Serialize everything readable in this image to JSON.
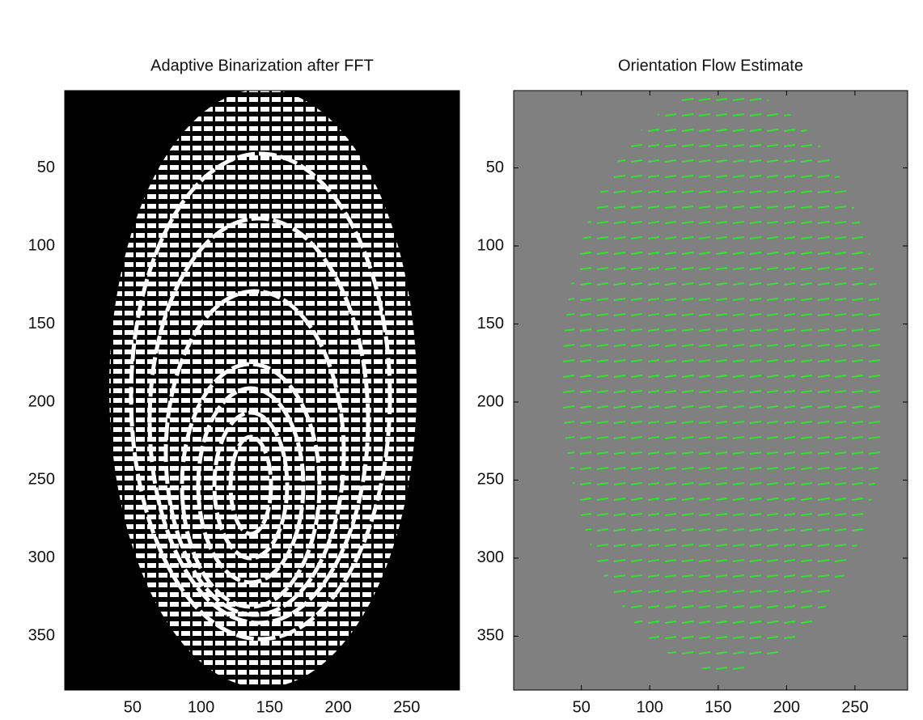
{
  "chart_data": [
    {
      "type": "image",
      "title": "Adaptive Binarization after FFT",
      "xlim": [
        0.5,
        288.5
      ],
      "ylim": [
        0.5,
        384.5
      ],
      "y_reversed": true,
      "xticks": [
        50,
        100,
        150,
        200,
        250
      ],
      "yticks": [
        50,
        100,
        150,
        200,
        250,
        300,
        350
      ],
      "background": "#000000"
    },
    {
      "type": "image",
      "title": "Orientation Flow Estimate",
      "xlim": [
        0.5,
        288.5
      ],
      "ylim": [
        0.5,
        384.5
      ],
      "y_reversed": true,
      "xticks": [
        50,
        100,
        150,
        200,
        250
      ],
      "yticks": [
        50,
        100,
        150,
        200,
        250,
        300,
        350
      ],
      "background": "#808080"
    }
  ]
}
